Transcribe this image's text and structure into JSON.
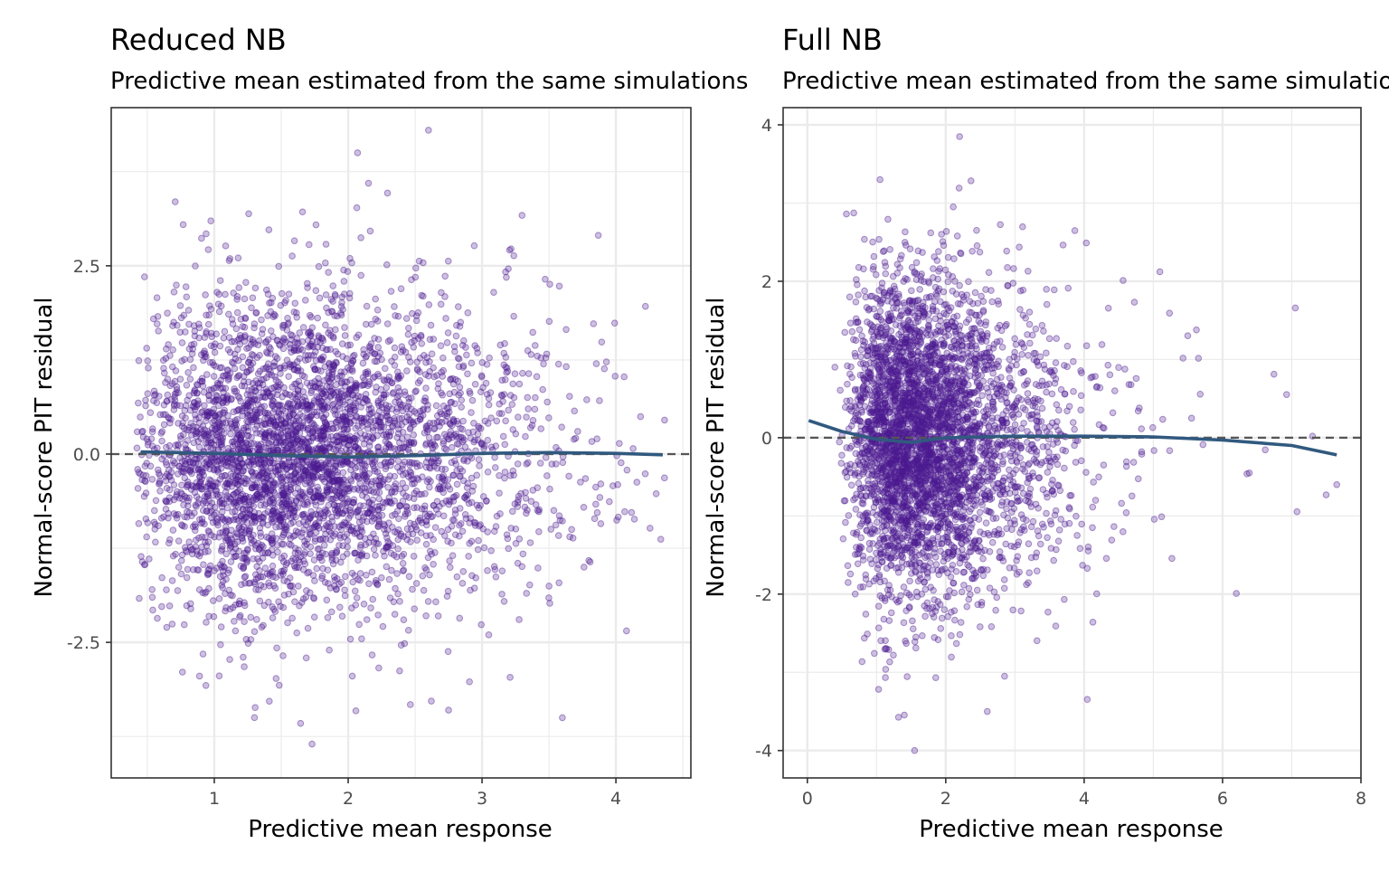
{
  "colors": {
    "points": "#4b1a91",
    "smooth": "#31597f",
    "reference": "#555555",
    "grid": "#ebebeb",
    "panel_border": "#333333"
  },
  "chart_data": [
    {
      "type": "scatter",
      "title": "Reduced NB",
      "subtitle": "Predictive mean estimated from the same simulations",
      "xlabel": "Predictive mean response",
      "ylabel": "Normal-score PIT residual",
      "xlim": [
        0.23,
        4.56
      ],
      "ylim": [
        -4.3,
        4.6
      ],
      "xticks": [
        1,
        2,
        3,
        4
      ],
      "xtick_labels": [
        "1",
        "2",
        "3",
        "4"
      ],
      "yticks": [
        -2.5,
        0,
        2.5
      ],
      "ytick_labels": [
        "-2.5",
        "0.0",
        "2.5"
      ],
      "grid": true,
      "reference_line": 0,
      "point_count_approx": 4000,
      "point_spread": {
        "x_min": 0.42,
        "x_max": 4.38,
        "y_sd": 1.0
      },
      "sample_outliers": [
        [
          2.6,
          4.3
        ],
        [
          2.07,
          4.0
        ],
        [
          1.73,
          -3.85
        ],
        [
          2.75,
          -3.4
        ],
        [
          3.6,
          -3.5
        ]
      ],
      "smooth_curve": {
        "x": [
          0.45,
          1.0,
          1.5,
          2.0,
          2.5,
          3.0,
          3.5,
          4.0,
          4.35
        ],
        "y": [
          0.03,
          0.01,
          -0.02,
          -0.04,
          -0.02,
          0.01,
          0.02,
          0.01,
          -0.01
        ]
      }
    },
    {
      "type": "scatter",
      "title": "Full NB",
      "subtitle": "Predictive mean estimated from the same simulations",
      "xlabel": "Predictive mean response",
      "ylabel": "Normal-score PIT residual",
      "xlim": [
        -0.35,
        8.0
      ],
      "ylim": [
        -4.35,
        4.22
      ],
      "xticks": [
        0,
        2,
        4,
        6,
        8
      ],
      "xtick_labels": [
        "0",
        "2",
        "4",
        "6",
        "8"
      ],
      "yticks": [
        -4,
        -2,
        0,
        2,
        4
      ],
      "ytick_labels": [
        "-4",
        "-2",
        "0",
        "2",
        "4"
      ],
      "grid": true,
      "reference_line": 0,
      "point_count_approx": 4000,
      "point_spread": {
        "x_min": 0.02,
        "x_max": 7.65,
        "y_sd": 1.0
      },
      "sample_outliers": [
        [
          2.2,
          3.85
        ],
        [
          1.05,
          3.3
        ],
        [
          1.55,
          -4.0
        ],
        [
          2.6,
          -3.5
        ],
        [
          2.85,
          -3.05
        ],
        [
          7.65,
          -0.6
        ],
        [
          7.3,
          0.02
        ]
      ],
      "smooth_curve": {
        "x": [
          0.02,
          0.5,
          1.0,
          1.5,
          2.0,
          2.5,
          3.0,
          4.0,
          5.0,
          6.0,
          7.0,
          7.65
        ],
        "y": [
          0.22,
          0.08,
          -0.02,
          -0.06,
          0.0,
          0.01,
          0.02,
          0.02,
          0.01,
          -0.03,
          -0.1,
          -0.22
        ]
      }
    }
  ]
}
